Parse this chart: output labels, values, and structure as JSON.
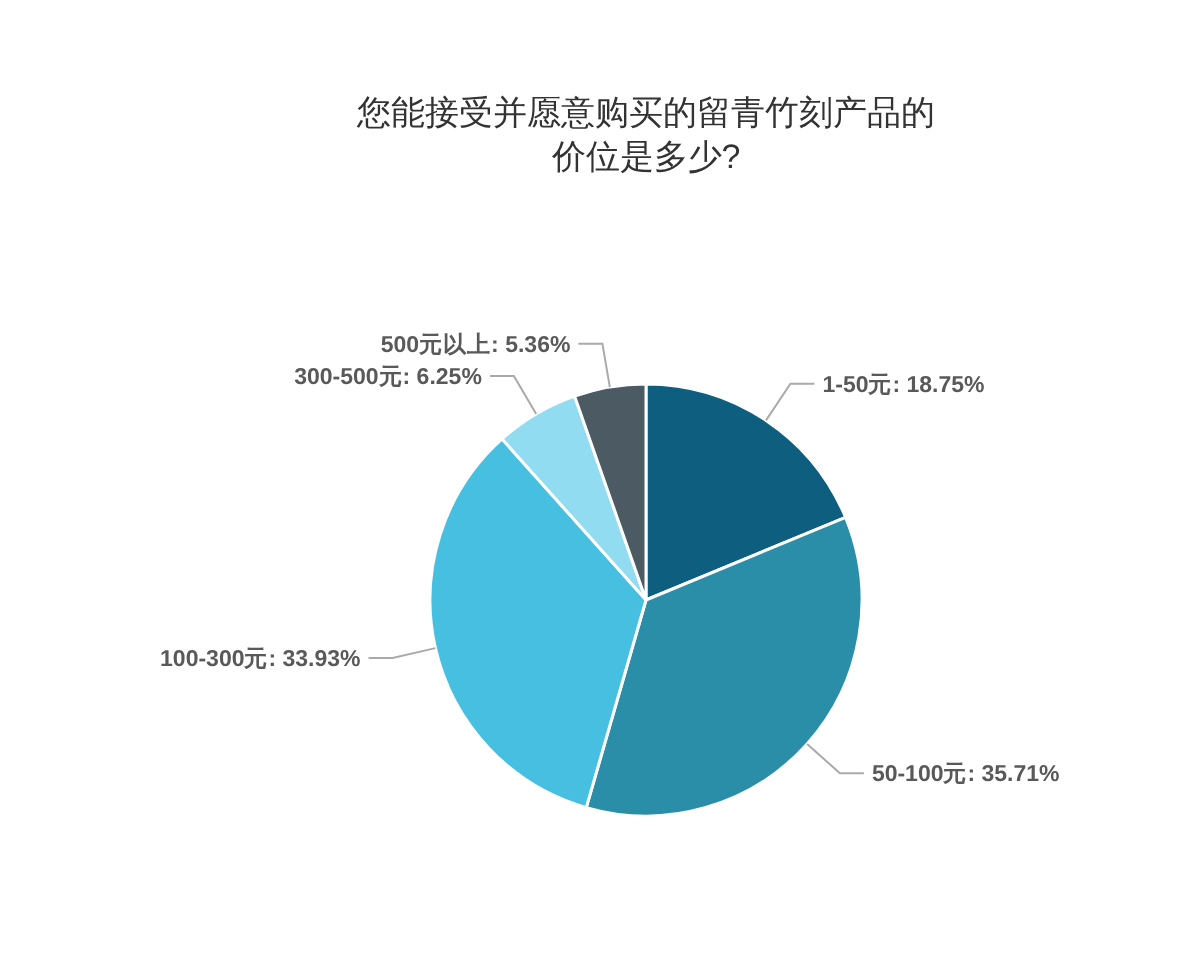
{
  "chart_data": {
    "type": "pie",
    "title": "您能接受并愿意购买的留青竹刻产品的价位是多少?",
    "categories": [
      "1-50元",
      "50-100元",
      "100-300元",
      "300-500元",
      "500元以上"
    ],
    "values": [
      18.75,
      35.71,
      33.93,
      6.25,
      5.36
    ],
    "value_labels": [
      "18.75%",
      "35.71%",
      "33.93%",
      "6.25%",
      "5.36%"
    ],
    "colors": [
      "#0e5f7f",
      "#2b8ea9",
      "#47bfe0",
      "#92dcf1",
      "#4b5a63"
    ]
  }
}
